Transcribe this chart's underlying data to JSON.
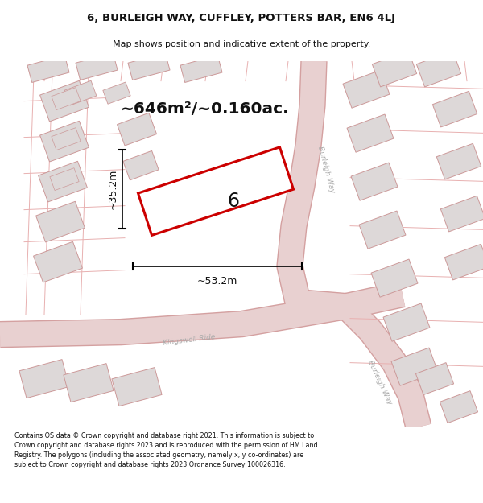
{
  "title_line1": "6, BURLEIGH WAY, CUFFLEY, POTTERS BAR, EN6 4LJ",
  "title_line2": "Map shows position and indicative extent of the property.",
  "area_text": "~646m²/~0.160ac.",
  "dim_width": "~53.2m",
  "dim_height": "~35.2m",
  "property_number": "6",
  "road_label_burleigh_upper": "Burleigh Way",
  "road_label_kingswell": "Kingswell Ride",
  "road_label_burleigh_lower": "Burleigh Way",
  "footer_text": "Contains OS data © Crown copyright and database right 2021. This information is subject to Crown copyright and database rights 2023 and is reproduced with the permission of HM Land Registry. The polygons (including the associated geometry, namely x, y co-ordinates) are subject to Crown copyright and database rights 2023 Ordnance Survey 100026316.",
  "map_bg": "#f7f2f2",
  "road_fill": "#e8d0d0",
  "road_edge": "#d4a0a0",
  "block_fill": "#ddd8d8",
  "block_edge": "#cc9999",
  "property_edge": "#cc0000",
  "property_fill": "#ffffff",
  "dim_color": "#000000",
  "text_color": "#111111",
  "road_text_color": "#aaaaaa",
  "header_bg": "#ffffff",
  "footer_bg": "#ffffff"
}
